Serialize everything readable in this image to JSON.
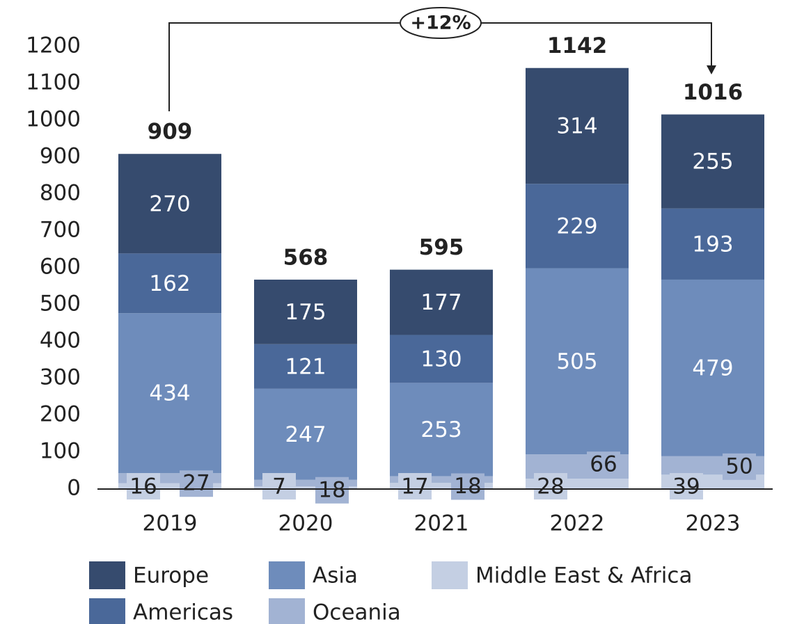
{
  "chart_data": {
    "type": "stacked_bar",
    "annotation": "+12%",
    "categories": [
      "2019",
      "2020",
      "2021",
      "2022",
      "2023"
    ],
    "series": [
      {
        "name": "Middle East & Africa",
        "color": "#c4cfe3",
        "values": [
          16,
          7,
          17,
          28,
          39
        ]
      },
      {
        "name": "Oceania",
        "color": "#a2b3d3",
        "values": [
          27,
          18,
          18,
          66,
          50
        ]
      },
      {
        "name": "Asia",
        "color": "#6e8cbb",
        "values": [
          434,
          247,
          253,
          505,
          479
        ]
      },
      {
        "name": "Americas",
        "color": "#4a6899",
        "values": [
          162,
          121,
          130,
          229,
          193
        ]
      },
      {
        "name": "Europe",
        "color": "#364b6e",
        "values": [
          270,
          175,
          177,
          314,
          255
        ]
      }
    ],
    "totals": [
      909,
      568,
      595,
      1142,
      1016
    ],
    "ylim": [
      0,
      1200
    ],
    "yticks": [
      0,
      100,
      200,
      300,
      400,
      500,
      600,
      700,
      800,
      900,
      1000,
      1100,
      1200
    ],
    "legend_order": [
      4,
      2,
      0,
      3,
      1
    ]
  }
}
